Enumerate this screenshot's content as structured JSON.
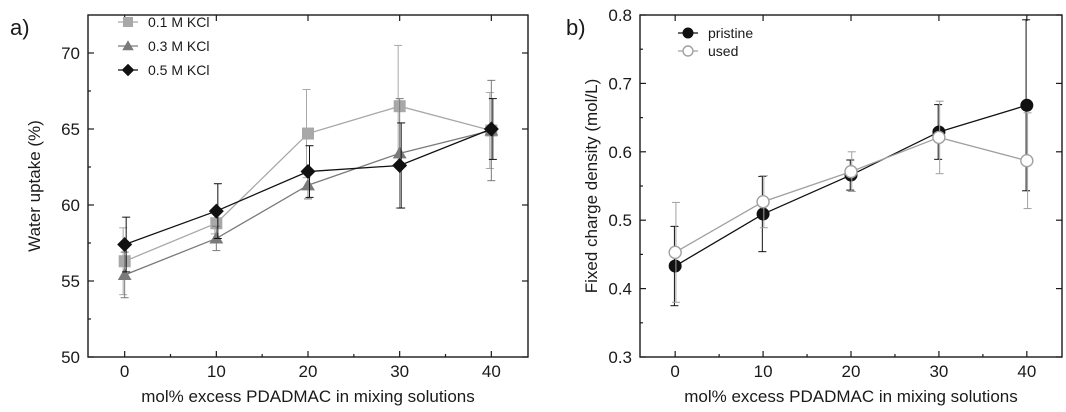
{
  "chart_data": [
    {
      "panel": "a)",
      "type": "line",
      "xlabel": "mol% excess PDADMAC in mixing solutions",
      "ylabel": "Water uptake (%)",
      "x": [
        0,
        10,
        20,
        30,
        40
      ],
      "xlim": [
        -4,
        44
      ],
      "ylim": [
        50,
        72.5
      ],
      "xticks": [
        0,
        10,
        20,
        30,
        40
      ],
      "yticks": [
        50,
        55,
        60,
        65,
        70
      ],
      "legend_position": "top-left",
      "series": [
        {
          "name": "0.1 M KCl",
          "marker": "square",
          "color": "#a8a8a8",
          "values": [
            56.3,
            58.8,
            64.7,
            66.5,
            64.9
          ],
          "errors": [
            2.2,
            0.7,
            2.9,
            4.0,
            2.5
          ]
        },
        {
          "name": "0.3 M KCl",
          "marker": "triangle",
          "color": "#7a7a7a",
          "values": [
            55.4,
            57.8,
            61.3,
            63.4,
            64.9
          ],
          "errors": [
            1.5,
            0.8,
            0.9,
            3.6,
            3.3
          ]
        },
        {
          "name": "0.5 M KCl",
          "marker": "diamond",
          "color": "#111111",
          "values": [
            57.4,
            59.6,
            62.2,
            62.6,
            65.0
          ],
          "errors": [
            1.8,
            1.8,
            1.7,
            2.8,
            2.0
          ]
        }
      ]
    },
    {
      "panel": "b)",
      "type": "line",
      "xlabel": "mol% excess PDADMAC in mixing solutions",
      "ylabel": "Fixed charge density (mol/L)",
      "x": [
        0,
        10,
        20,
        30,
        40
      ],
      "xlim": [
        -4,
        44
      ],
      "ylim": [
        0.3,
        0.8
      ],
      "xticks": [
        0,
        10,
        20,
        30,
        40
      ],
      "yticks": [
        0.3,
        0.4,
        0.5,
        0.6,
        0.7,
        0.8
      ],
      "legend_position": "top-left",
      "series": [
        {
          "name": "pristine",
          "marker": "filled-circle",
          "color": "#111111",
          "values": [
            0.433,
            0.509,
            0.566,
            0.629,
            0.668
          ],
          "errors": [
            0.058,
            0.055,
            0.022,
            0.04,
            0.125
          ]
        },
        {
          "name": "used",
          "marker": "open-circle",
          "color": "#a0a0a0",
          "values": [
            0.453,
            0.527,
            0.571,
            0.621,
            0.587
          ],
          "errors": [
            0.073,
            0.038,
            0.029,
            0.053,
            0.07
          ]
        }
      ]
    }
  ]
}
